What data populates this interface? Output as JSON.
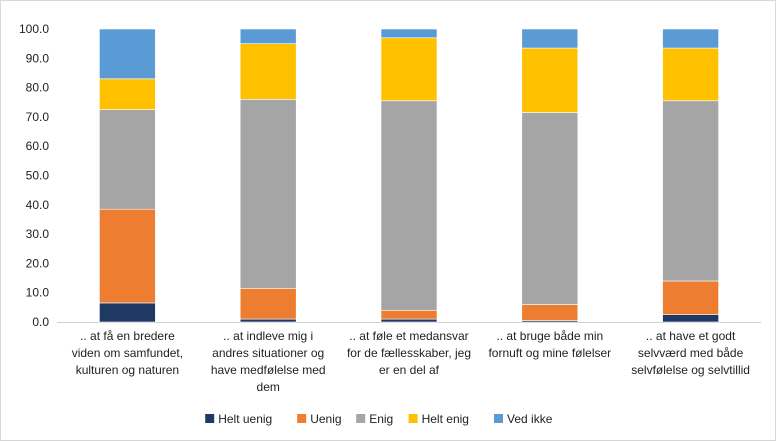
{
  "chart_data": {
    "type": "bar",
    "stacked": true,
    "title": "",
    "xlabel": "",
    "ylabel": "",
    "ylim": [
      0,
      100
    ],
    "yticks": [
      "0.0",
      "10.0",
      "20.0",
      "30.0",
      "40.0",
      "50.0",
      "60.0",
      "70.0",
      "80.0",
      "90.0",
      "100.0"
    ],
    "grid": false,
    "legend_position": "bottom",
    "categories": [
      [
        ".. at få en bredere",
        "viden om samfundet,",
        "kulturen og naturen"
      ],
      [
        ".. at indleve mig i",
        "andres situationer og",
        "have medfølelse med",
        "dem"
      ],
      [
        ".. at føle et medansvar",
        "for de fællesskaber, jeg",
        "er en del af"
      ],
      [
        ".. at bruge både min",
        "fornuft og mine følelser"
      ],
      [
        ".. at have et godt",
        "selvværd med både",
        "selvfølelse og selvtillid"
      ]
    ],
    "series": [
      {
        "name": "Helt uenig",
        "color": "#203864",
        "values": [
          6.5,
          1.0,
          1.0,
          0.5,
          2.5
        ]
      },
      {
        "name": "Uenig",
        "color": "#ed7d31",
        "values": [
          32.0,
          10.5,
          3.0,
          5.5,
          11.5
        ]
      },
      {
        "name": "Enig",
        "color": "#a5a5a5",
        "values": [
          34.0,
          64.5,
          71.5,
          65.5,
          61.5
        ]
      },
      {
        "name": "Helt enig",
        "color": "#ffc000",
        "values": [
          10.5,
          19.0,
          21.5,
          22.0,
          18.0
        ]
      },
      {
        "name": "Ved ikke",
        "color": "#5b9bd5",
        "values": [
          17.0,
          5.0,
          3.0,
          6.5,
          6.5
        ]
      }
    ]
  }
}
